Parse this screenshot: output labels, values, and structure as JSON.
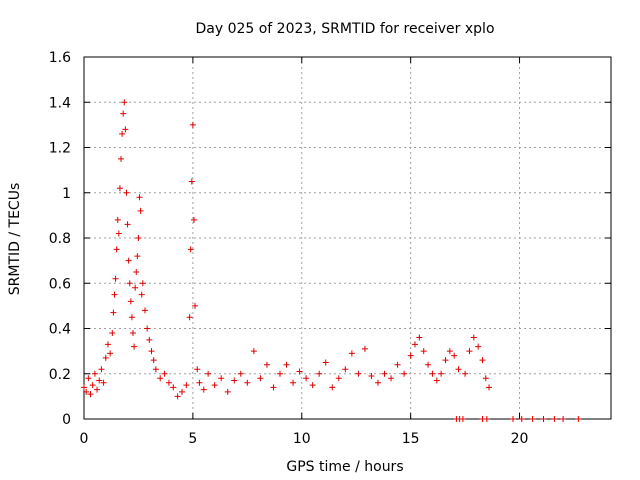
{
  "chart_data": {
    "type": "scatter",
    "title": "Day 025 of 2023, SRMTID for receiver xplo",
    "xlabel": "GPS time / hours",
    "ylabel": "SRMTID / TECUs",
    "xlim": [
      0,
      24.2
    ],
    "ylim": [
      0,
      1.6
    ],
    "xticks": [
      0,
      5,
      10,
      15,
      20
    ],
    "yticks": [
      0,
      0.2,
      0.4,
      0.6,
      0.8,
      1,
      1.2,
      1.4,
      1.6
    ],
    "ytick_labels": [
      "0",
      "0.2",
      "0.4",
      "0.6",
      "0.8",
      "1",
      "1.2",
      "1.4",
      "1.6"
    ],
    "grid": true,
    "marker": "+",
    "color": "#e00000",
    "series": [
      {
        "name": "SRMTID",
        "points": [
          [
            0.0,
            0.14
          ],
          [
            0.1,
            0.12
          ],
          [
            0.2,
            0.18
          ],
          [
            0.3,
            0.11
          ],
          [
            0.4,
            0.15
          ],
          [
            0.5,
            0.2
          ],
          [
            0.6,
            0.13
          ],
          [
            0.7,
            0.17
          ],
          [
            0.8,
            0.22
          ],
          [
            0.9,
            0.16
          ],
          [
            1.0,
            0.27
          ],
          [
            1.1,
            0.33
          ],
          [
            1.2,
            0.29
          ],
          [
            1.3,
            0.38
          ],
          [
            1.35,
            0.47
          ],
          [
            1.4,
            0.55
          ],
          [
            1.45,
            0.62
          ],
          [
            1.5,
            0.75
          ],
          [
            1.55,
            0.88
          ],
          [
            1.6,
            0.82
          ],
          [
            1.65,
            1.02
          ],
          [
            1.7,
            1.15
          ],
          [
            1.75,
            1.26
          ],
          [
            1.8,
            1.35
          ],
          [
            1.85,
            1.4
          ],
          [
            1.9,
            1.28
          ],
          [
            1.95,
            1.0
          ],
          [
            2.0,
            0.86
          ],
          [
            2.05,
            0.7
          ],
          [
            2.1,
            0.6
          ],
          [
            2.15,
            0.52
          ],
          [
            2.2,
            0.45
          ],
          [
            2.25,
            0.38
          ],
          [
            2.3,
            0.32
          ],
          [
            2.35,
            0.58
          ],
          [
            2.4,
            0.65
          ],
          [
            2.45,
            0.72
          ],
          [
            2.5,
            0.8
          ],
          [
            2.55,
            0.98
          ],
          [
            2.6,
            0.92
          ],
          [
            2.65,
            0.55
          ],
          [
            2.7,
            0.6
          ],
          [
            2.8,
            0.48
          ],
          [
            2.9,
            0.4
          ],
          [
            3.0,
            0.35
          ],
          [
            3.1,
            0.3
          ],
          [
            3.2,
            0.26
          ],
          [
            3.3,
            0.22
          ],
          [
            3.5,
            0.18
          ],
          [
            3.7,
            0.2
          ],
          [
            3.9,
            0.16
          ],
          [
            4.1,
            0.14
          ],
          [
            4.3,
            0.1
          ],
          [
            4.5,
            0.12
          ],
          [
            4.7,
            0.15
          ],
          [
            4.85,
            0.45
          ],
          [
            4.9,
            0.75
          ],
          [
            4.95,
            1.05
          ],
          [
            5.0,
            1.3
          ],
          [
            5.05,
            0.88
          ],
          [
            5.1,
            0.5
          ],
          [
            5.2,
            0.22
          ],
          [
            5.3,
            0.16
          ],
          [
            5.5,
            0.13
          ],
          [
            5.7,
            0.2
          ],
          [
            6.0,
            0.15
          ],
          [
            6.3,
            0.18
          ],
          [
            6.6,
            0.12
          ],
          [
            6.9,
            0.17
          ],
          [
            7.2,
            0.2
          ],
          [
            7.5,
            0.16
          ],
          [
            7.8,
            0.3
          ],
          [
            8.1,
            0.18
          ],
          [
            8.4,
            0.24
          ],
          [
            8.7,
            0.14
          ],
          [
            9.0,
            0.2
          ],
          [
            9.3,
            0.24
          ],
          [
            9.6,
            0.16
          ],
          [
            9.9,
            0.21
          ],
          [
            10.2,
            0.18
          ],
          [
            10.5,
            0.15
          ],
          [
            10.8,
            0.2
          ],
          [
            11.1,
            0.25
          ],
          [
            11.4,
            0.14
          ],
          [
            11.7,
            0.18
          ],
          [
            12.0,
            0.22
          ],
          [
            12.3,
            0.29
          ],
          [
            12.6,
            0.2
          ],
          [
            12.9,
            0.31
          ],
          [
            13.2,
            0.19
          ],
          [
            13.5,
            0.16
          ],
          [
            13.8,
            0.2
          ],
          [
            14.1,
            0.18
          ],
          [
            14.4,
            0.24
          ],
          [
            14.7,
            0.2
          ],
          [
            15.0,
            0.28
          ],
          [
            15.2,
            0.33
          ],
          [
            15.4,
            0.36
          ],
          [
            15.6,
            0.3
          ],
          [
            15.8,
            0.24
          ],
          [
            16.0,
            0.2
          ],
          [
            16.2,
            0.17
          ],
          [
            16.4,
            0.2
          ],
          [
            16.6,
            0.26
          ],
          [
            16.8,
            0.3
          ],
          [
            17.0,
            0.28
          ],
          [
            17.2,
            0.22
          ],
          [
            17.5,
            0.2
          ],
          [
            17.7,
            0.3
          ],
          [
            17.9,
            0.36
          ],
          [
            18.1,
            0.32
          ],
          [
            18.3,
            0.26
          ],
          [
            18.45,
            0.18
          ],
          [
            18.6,
            0.14
          ],
          [
            17.1,
            0.0
          ],
          [
            17.25,
            0.0
          ],
          [
            17.4,
            0.0
          ],
          [
            18.3,
            0.0
          ],
          [
            18.5,
            0.0
          ],
          [
            19.7,
            0.0
          ],
          [
            20.1,
            0.0
          ],
          [
            20.6,
            0.0
          ],
          [
            21.1,
            0.0
          ],
          [
            21.6,
            0.0
          ],
          [
            22.0,
            0.0
          ],
          [
            22.7,
            0.0
          ]
        ]
      }
    ]
  }
}
